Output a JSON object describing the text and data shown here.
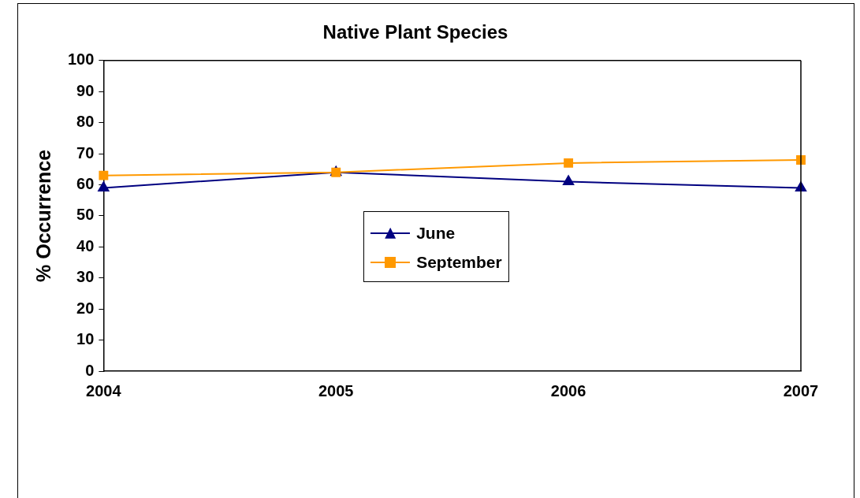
{
  "chart_data": {
    "type": "line",
    "title": "Native Plant Species",
    "ylabel": "% Occurrence",
    "categories": [
      "2004",
      "2005",
      "2006",
      "2007"
    ],
    "series": [
      {
        "name": "June",
        "color": "#000080",
        "marker": "triangle",
        "values": [
          59,
          64,
          61,
          59
        ]
      },
      {
        "name": "September",
        "color": "#ff9900",
        "marker": "square",
        "values": [
          63,
          64,
          67,
          68
        ]
      }
    ],
    "ylim": [
      0,
      100
    ],
    "yticks": [
      0,
      10,
      20,
      30,
      40,
      50,
      60,
      70,
      80,
      90,
      100
    ],
    "grid": false,
    "legend": "center"
  }
}
